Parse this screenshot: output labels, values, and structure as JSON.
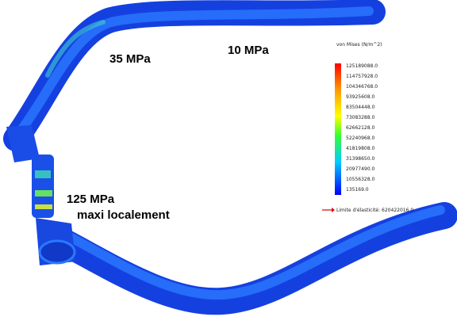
{
  "annotations": {
    "upper_left": "35 MPa",
    "upper_right": "10 MPa",
    "joint": "125 MPa",
    "joint_note": "maxi localement"
  },
  "legend": {
    "title": "von Mises (N/m^2)",
    "labels": [
      "125189088.0",
      "114757928.0",
      "104346768.0",
      "93925608.0",
      "83504448.0",
      "73083288.0",
      "62662128.0",
      "52240968.0",
      "41819808.0",
      "31398650.0",
      "20977490.0",
      "10556328.0",
      "135169.0"
    ],
    "yield_limit": "Limite d'élasticité: 620422016.0"
  }
}
